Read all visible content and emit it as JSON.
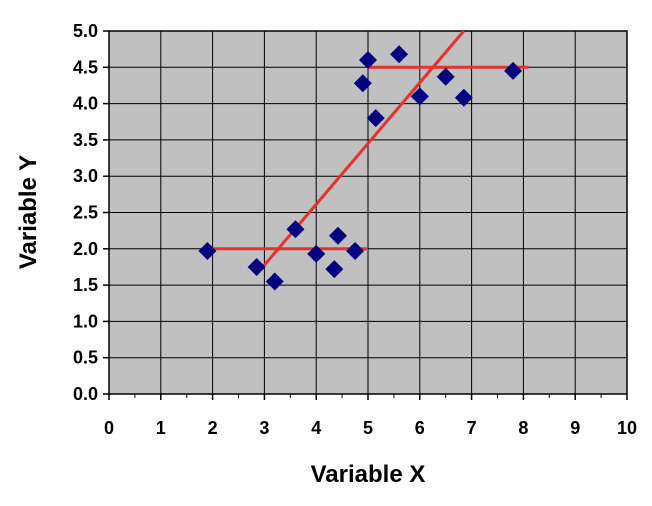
{
  "chart_data": {
    "type": "scatter",
    "title": "",
    "xlabel": "Variable X",
    "ylabel": "Variable Y",
    "xlim": [
      0,
      10
    ],
    "ylim": [
      0,
      5
    ],
    "x_ticks": [
      "0",
      "1",
      "2",
      "3",
      "4",
      "5",
      "6",
      "7",
      "8",
      "9",
      "10"
    ],
    "y_ticks": [
      "0.0",
      "0.5",
      "1.0",
      "1.5",
      "2.0",
      "2.5",
      "3.0",
      "3.5",
      "4.0",
      "4.5",
      "5.0"
    ],
    "grid": true,
    "colors": {
      "plot_background": "#c0c0c0",
      "grid": "#000000",
      "points": "#000080",
      "lines": "#e8312a"
    },
    "series": [
      {
        "marker": "diamond",
        "points": [
          {
            "x": 1.9,
            "y": 1.97
          },
          {
            "x": 2.85,
            "y": 1.75
          },
          {
            "x": 3.2,
            "y": 1.55
          },
          {
            "x": 3.6,
            "y": 2.27
          },
          {
            "x": 4.0,
            "y": 1.93
          },
          {
            "x": 4.35,
            "y": 1.72
          },
          {
            "x": 4.42,
            "y": 2.18
          },
          {
            "x": 4.75,
            "y": 1.97
          },
          {
            "x": 4.9,
            "y": 4.28
          },
          {
            "x": 5.0,
            "y": 4.6
          },
          {
            "x": 5.15,
            "y": 3.8
          },
          {
            "x": 5.6,
            "y": 4.68
          },
          {
            "x": 6.0,
            "y": 4.1
          },
          {
            "x": 6.5,
            "y": 4.37
          },
          {
            "x": 6.85,
            "y": 4.08
          },
          {
            "x": 7.8,
            "y": 4.45
          }
        ]
      }
    ],
    "lines": [
      {
        "x": [
          1.9,
          5.0
        ],
        "y": [
          2.0,
          2.0
        ]
      },
      {
        "x": [
          5.0,
          8.1
        ],
        "y": [
          4.5,
          4.5
        ]
      },
      {
        "x": [
          2.85,
          6.85
        ],
        "y": [
          1.65,
          5.0
        ]
      }
    ]
  }
}
